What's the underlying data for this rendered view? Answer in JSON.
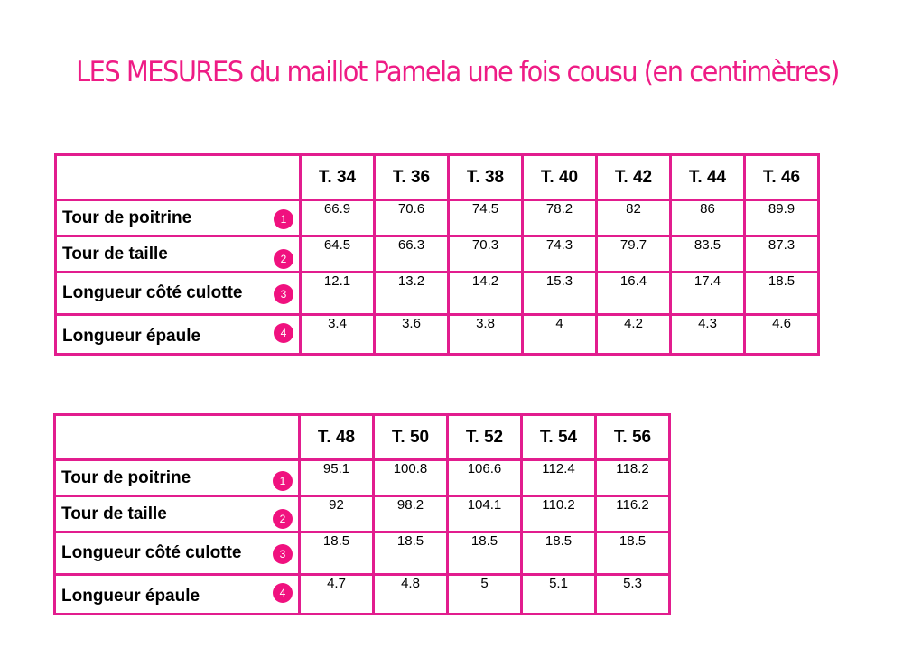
{
  "title": "LES MESURES du maillot Pamela une fois cousu (en centimètres)",
  "table1": {
    "sizes": [
      "T. 34",
      "T. 36",
      "T. 38",
      "T. 40",
      "T. 42",
      "T. 44",
      "T. 46"
    ],
    "rows": [
      {
        "label": "Tour de poitrine",
        "badge": "1",
        "values": [
          "66.9",
          "70.6",
          "74.5",
          "78.2",
          "82",
          "86",
          "89.9"
        ]
      },
      {
        "label": "Tour de taille",
        "badge": "2",
        "values": [
          "64.5",
          "66.3",
          "70.3",
          "74.3",
          "79.7",
          "83.5",
          "87.3"
        ]
      },
      {
        "label": "Longueur côté culotte",
        "badge": "3",
        "values": [
          "12.1",
          "13.2",
          "14.2",
          "15.3",
          "16.4",
          "17.4",
          "18.5"
        ]
      },
      {
        "label": "Longueur épaule",
        "badge": "4",
        "values": [
          "3.4",
          "3.6",
          "3.8",
          "4",
          "4.2",
          "4.3",
          "4.6"
        ]
      }
    ]
  },
  "table2": {
    "sizes": [
      "T. 48",
      "T. 50",
      "T. 52",
      "T. 54",
      "T. 56"
    ],
    "rows": [
      {
        "label": "Tour de poitrine",
        "badge": "1",
        "values": [
          "95.1",
          "100.8",
          "106.6",
          "112.4",
          "118.2"
        ]
      },
      {
        "label": "Tour de taille",
        "badge": "2",
        "values": [
          "92",
          "98.2",
          "104.1",
          "110.2",
          "116.2"
        ]
      },
      {
        "label": "Longueur côté culotte",
        "badge": "3",
        "values": [
          "18.5",
          "18.5",
          "18.5",
          "18.5",
          "18.5"
        ]
      },
      {
        "label": "Longueur épaule",
        "badge": "4",
        "values": [
          "4.7",
          "4.8",
          "5",
          "5.1",
          "5.3"
        ]
      }
    ]
  },
  "colors": {
    "title": "#ee1c85",
    "border": "#e21d8e",
    "badge": "#f0117f"
  }
}
